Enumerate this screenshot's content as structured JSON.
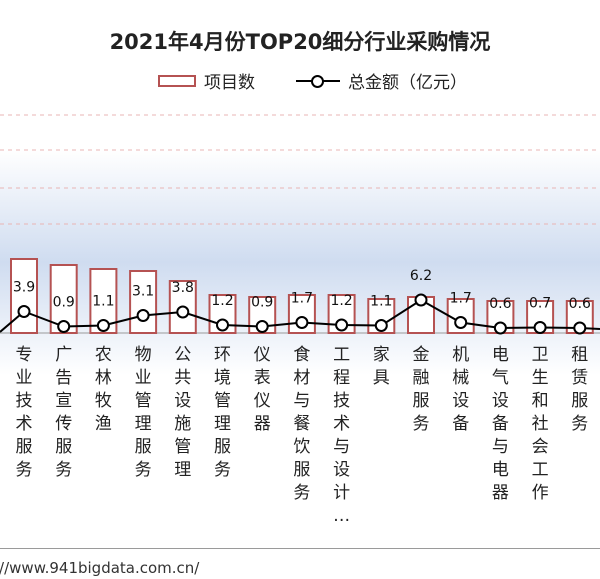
{
  "title": "2021年4月份TOP20细分行业采购情况",
  "legend": {
    "bars": "项目数",
    "line": "总金额（亿元）"
  },
  "source": "://www.941bigdata.com.cn/",
  "colors": {
    "bar_stroke": "#b55252",
    "line": "#000000",
    "band": "#cfdcf0"
  },
  "chart_data": {
    "type": "bar",
    "categories": [
      "专业技术服务",
      "广告宣传服务",
      "农林牧渔",
      "物业管理服务",
      "公共设施管理",
      "环境管理服务",
      "仪表仪器",
      "食材与餐饮服务",
      "工程技术与设计…",
      "家具",
      "金融服务",
      "机械设备",
      "电气设备与电器",
      "卫生和社会工作",
      "租赁服务"
    ],
    "series": [
      {
        "name": "项目数",
        "type": "bar",
        "values": [
          37,
          34,
          32,
          31,
          26,
          19,
          18,
          19,
          19,
          17,
          18,
          17,
          16,
          16,
          16
        ]
      },
      {
        "name": "总金额（亿元）",
        "type": "line",
        "values": [
          3.9,
          0.9,
          1.1,
          3.1,
          3.8,
          1.2,
          0.9,
          1.7,
          1.2,
          1.1,
          6.2,
          1.7,
          0.6,
          0.7,
          0.6
        ],
        "labels": [
          "3.9",
          "0.9",
          "1.1",
          "3.1",
          "3.8",
          "1.2",
          "0.9",
          "1.7",
          "1.2",
          "1.1",
          "6.2",
          "1.7",
          "0.6",
          "0.7",
          "0.6"
        ]
      }
    ],
    "legend_position": "top"
  }
}
